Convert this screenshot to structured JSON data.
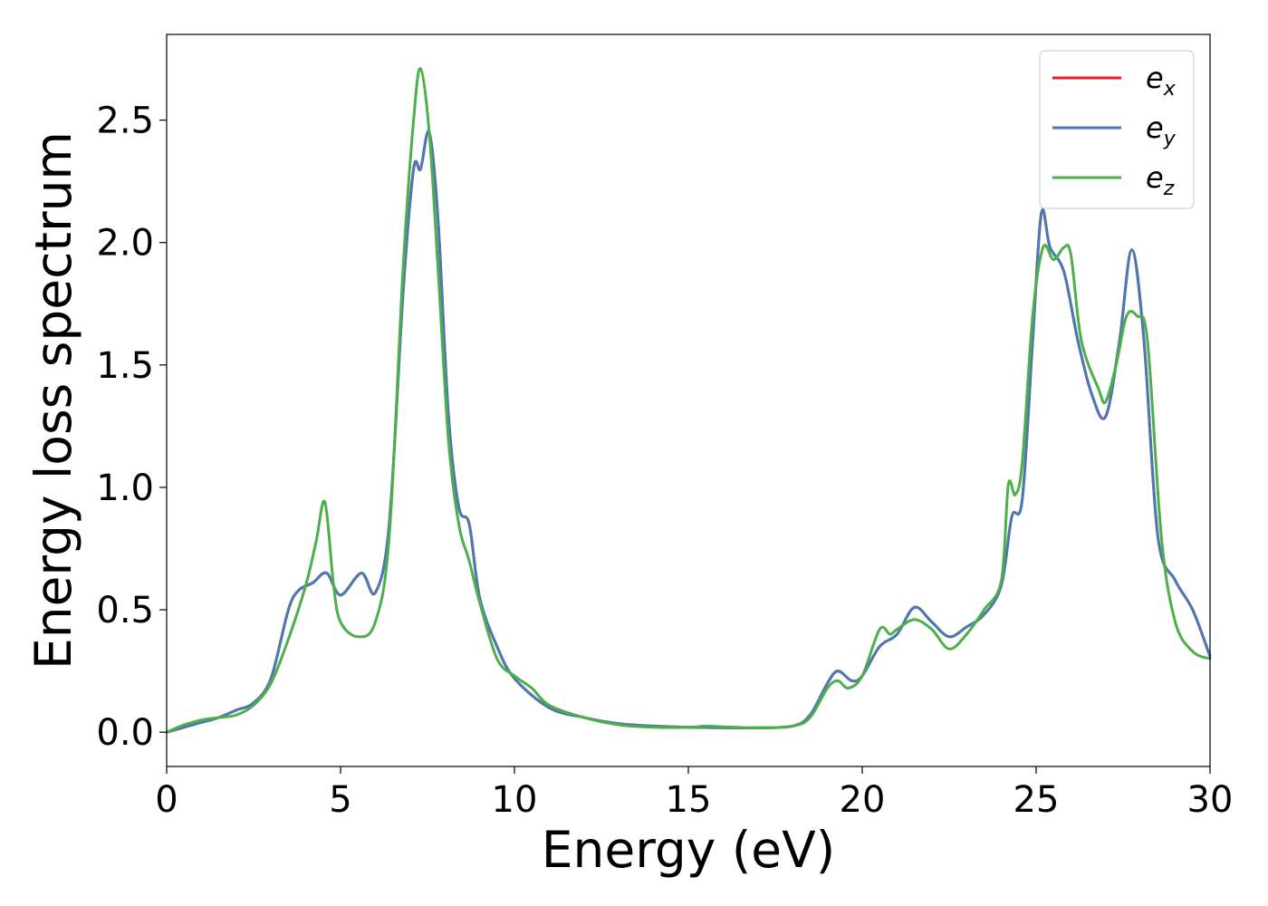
{
  "chart_data": {
    "type": "line",
    "title": "",
    "xlabel": "Energy (eV)",
    "ylabel": "Energy loss spectrum",
    "xlim": [
      0,
      30
    ],
    "ylim": [
      -0.14,
      2.85
    ],
    "xticks": [
      0,
      5,
      10,
      15,
      20,
      25,
      30
    ],
    "yticks": [
      0.0,
      0.5,
      1.0,
      1.5,
      2.0,
      2.5
    ],
    "xtick_labels": [
      "0",
      "5",
      "10",
      "15",
      "20",
      "25",
      "30"
    ],
    "ytick_labels": [
      "0.0",
      "0.5",
      "1.0",
      "1.5",
      "2.0",
      "2.5"
    ],
    "grid": false,
    "legend_position": "top-right",
    "series": [
      {
        "name": "e_x",
        "label_base": "e",
        "label_sub": "x",
        "color": "#e41a1c",
        "x": [
          0,
          0.5,
          1,
          1.5,
          2,
          2.5,
          3,
          3.5,
          3.8,
          4.2,
          4.6,
          5.0,
          5.6,
          6.0,
          6.4,
          6.8,
          7.1,
          7.3,
          7.55,
          7.8,
          8.1,
          8.4,
          8.7,
          9.0,
          9.5,
          10,
          11,
          12,
          13,
          14,
          15,
          16,
          17,
          18,
          18.5,
          19.0,
          19.3,
          19.7,
          20.0,
          20.5,
          21.0,
          21.5,
          22.0,
          22.5,
          23.0,
          23.5,
          24.0,
          24.3,
          24.6,
          24.9,
          25.15,
          25.4,
          25.8,
          26.2,
          26.6,
          27.0,
          27.4,
          27.75,
          28.1,
          28.5,
          29.0,
          29.5,
          30.0
        ],
        "y": [
          0.0,
          0.02,
          0.04,
          0.06,
          0.09,
          0.12,
          0.22,
          0.5,
          0.58,
          0.61,
          0.65,
          0.56,
          0.65,
          0.57,
          0.85,
          1.8,
          2.3,
          2.3,
          2.45,
          2.1,
          1.3,
          0.92,
          0.85,
          0.55,
          0.35,
          0.22,
          0.1,
          0.06,
          0.035,
          0.025,
          0.02,
          0.018,
          0.018,
          0.025,
          0.07,
          0.2,
          0.25,
          0.21,
          0.23,
          0.35,
          0.4,
          0.51,
          0.45,
          0.39,
          0.43,
          0.48,
          0.6,
          0.88,
          0.95,
          1.6,
          2.12,
          1.98,
          1.88,
          1.6,
          1.38,
          1.29,
          1.6,
          1.97,
          1.6,
          0.8,
          0.62,
          0.5,
          0.31
        ]
      },
      {
        "name": "e_y",
        "label_base": "e",
        "label_sub": "y",
        "color": "#4a7ab4",
        "x": [
          0,
          0.5,
          1,
          1.5,
          2,
          2.5,
          3,
          3.5,
          3.8,
          4.2,
          4.6,
          5.0,
          5.6,
          6.0,
          6.4,
          6.8,
          7.1,
          7.3,
          7.55,
          7.8,
          8.1,
          8.4,
          8.7,
          9.0,
          9.5,
          10,
          11,
          12,
          13,
          14,
          15,
          16,
          17,
          18,
          18.5,
          19.0,
          19.3,
          19.7,
          20.0,
          20.5,
          21.0,
          21.5,
          22.0,
          22.5,
          23.0,
          23.5,
          24.0,
          24.3,
          24.6,
          24.9,
          25.15,
          25.4,
          25.8,
          26.2,
          26.6,
          27.0,
          27.4,
          27.75,
          28.1,
          28.5,
          29.0,
          29.5,
          30.0
        ],
        "y": [
          0.0,
          0.02,
          0.04,
          0.06,
          0.09,
          0.12,
          0.22,
          0.5,
          0.58,
          0.61,
          0.65,
          0.56,
          0.65,
          0.57,
          0.85,
          1.8,
          2.3,
          2.3,
          2.45,
          2.1,
          1.3,
          0.92,
          0.85,
          0.55,
          0.35,
          0.22,
          0.1,
          0.06,
          0.035,
          0.025,
          0.02,
          0.018,
          0.018,
          0.025,
          0.07,
          0.2,
          0.25,
          0.21,
          0.23,
          0.35,
          0.4,
          0.51,
          0.45,
          0.39,
          0.43,
          0.48,
          0.6,
          0.88,
          0.95,
          1.6,
          2.12,
          1.98,
          1.88,
          1.6,
          1.38,
          1.29,
          1.6,
          1.97,
          1.6,
          0.8,
          0.62,
          0.5,
          0.31
        ]
      },
      {
        "name": "e_z",
        "label_base": "e",
        "label_sub": "z",
        "color": "#4daf4a",
        "x": [
          0,
          0.5,
          1,
          1.5,
          2,
          2.5,
          3,
          3.5,
          4.0,
          4.3,
          4.55,
          4.8,
          5.0,
          5.5,
          6.0,
          6.4,
          6.8,
          7.1,
          7.3,
          7.55,
          7.8,
          8.1,
          8.4,
          8.7,
          9.0,
          9.5,
          10,
          10.5,
          11,
          12,
          13,
          14,
          15,
          15.5,
          16,
          17,
          18,
          18.5,
          19.0,
          19.3,
          19.6,
          20.0,
          20.5,
          20.8,
          21.0,
          21.5,
          22.0,
          22.5,
          23.0,
          23.5,
          24.0,
          24.2,
          24.4,
          24.6,
          24.9,
          25.2,
          25.5,
          25.8,
          26.0,
          26.3,
          26.8,
          27.0,
          27.3,
          27.6,
          27.9,
          28.2,
          28.6,
          29.0,
          29.5,
          30.0
        ],
        "y": [
          0.0,
          0.03,
          0.05,
          0.06,
          0.07,
          0.11,
          0.2,
          0.38,
          0.6,
          0.78,
          0.94,
          0.6,
          0.45,
          0.39,
          0.45,
          0.8,
          1.9,
          2.5,
          2.71,
          2.45,
          1.9,
          1.2,
          0.85,
          0.7,
          0.53,
          0.3,
          0.23,
          0.18,
          0.11,
          0.06,
          0.03,
          0.02,
          0.02,
          0.025,
          0.022,
          0.018,
          0.025,
          0.06,
          0.18,
          0.21,
          0.18,
          0.23,
          0.42,
          0.4,
          0.42,
          0.46,
          0.42,
          0.34,
          0.4,
          0.5,
          0.62,
          1.01,
          0.97,
          1.1,
          1.7,
          1.98,
          1.93,
          1.98,
          1.95,
          1.6,
          1.4,
          1.35,
          1.5,
          1.7,
          1.7,
          1.6,
          0.8,
          0.45,
          0.33,
          0.3
        ]
      }
    ]
  }
}
